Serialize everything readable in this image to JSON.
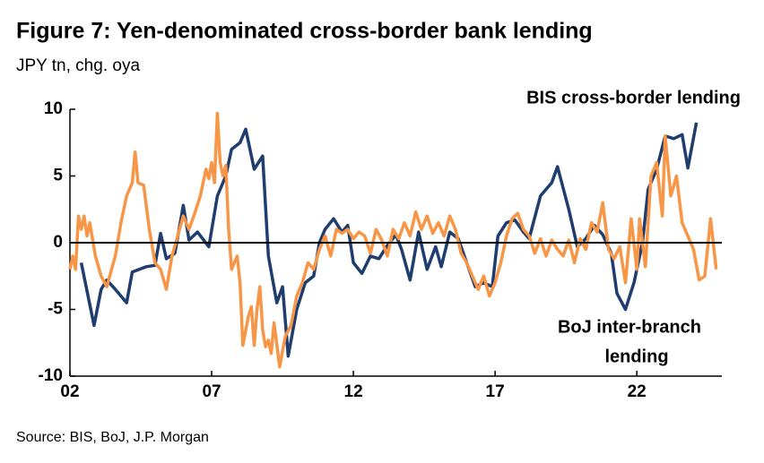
{
  "chart_data": {
    "type": "line",
    "title": "Figure 7: Yen-denominated cross-border bank lending",
    "subtitle": "JPY tn, chg. oya",
    "source": "Source: BIS, BoJ, J.P. Morgan",
    "annotations": [
      {
        "text": [
          "BIS cross-border lending"
        ],
        "series": 0
      },
      {
        "text": [
          "BoJ inter-branch",
          "lending"
        ],
        "series": 1
      }
    ],
    "xlim": [
      2002,
      2025
    ],
    "xticks": [
      {
        "value": 2002,
        "label": "02"
      },
      {
        "value": 2007,
        "label": "07"
      },
      {
        "value": 2012,
        "label": "12"
      },
      {
        "value": 2017,
        "label": "17"
      },
      {
        "value": 2022,
        "label": "22"
      }
    ],
    "ylim": [
      -10,
      10
    ],
    "yticks": [
      10,
      5,
      0,
      -5,
      -10
    ],
    "series": [
      {
        "name": "BIS cross-border lending",
        "color": "#1f3d6e",
        "x": [
          2002.4,
          2002.85,
          2003.1,
          2003.3,
          2003.6,
          2004.0,
          2004.2,
          2004.7,
          2005.0,
          2005.2,
          2005.4,
          2005.7,
          2006.0,
          2006.2,
          2006.5,
          2006.9,
          2007.2,
          2007.5,
          2007.7,
          2008.0,
          2008.2,
          2008.5,
          2008.8,
          2009.0,
          2009.3,
          2009.5,
          2009.7,
          2010.0,
          2010.3,
          2010.6,
          2010.8,
          2011.0,
          2011.3,
          2011.6,
          2011.8,
          2012.0,
          2012.3,
          2012.6,
          2012.9,
          2013.2,
          2013.5,
          2013.7,
          2014.0,
          2014.3,
          2014.6,
          2014.9,
          2015.1,
          2015.4,
          2015.7,
          2016.0,
          2016.3,
          2016.6,
          2016.9,
          2017.1,
          2017.4,
          2017.7,
          2018.0,
          2018.2,
          2018.6,
          2019.0,
          2019.2,
          2019.6,
          2019.9,
          2020.2,
          2020.5,
          2020.8,
          2021.1,
          2021.3,
          2021.6,
          2021.9,
          2022.2,
          2022.4,
          2022.7,
          2023.0,
          2023.3,
          2023.6,
          2023.8,
          2024.1
        ],
        "values": [
          -1.5,
          -6.2,
          -3.5,
          -2.8,
          -3.5,
          -4.5,
          -2.2,
          -1.8,
          -1.7,
          0.7,
          -1.2,
          -0.8,
          2.8,
          0.2,
          0.8,
          -0.3,
          3.5,
          5.0,
          7.0,
          7.5,
          8.5,
          5.5,
          6.5,
          -1.0,
          -4.5,
          -3.3,
          -8.5,
          -5.0,
          -3.0,
          -2.5,
          0,
          1.0,
          1.8,
          0.8,
          1.3,
          -1.5,
          -2.3,
          -1.0,
          -1.2,
          -0.2,
          0.6,
          -0.5,
          -2.8,
          0.8,
          -2.0,
          -0.3,
          -1.8,
          0.8,
          0.3,
          -1.5,
          -3.3,
          -3.0,
          -3.3,
          0.5,
          1.5,
          1.7,
          0.8,
          0.3,
          3.5,
          4.5,
          5.7,
          2.5,
          -0.3,
          0.3,
          1.3,
          0.6,
          -0.8,
          -3.8,
          -5.0,
          -3.0,
          0,
          4.0,
          5.5,
          8.0,
          7.8,
          8.1,
          5.6,
          9.0
        ]
      },
      {
        "name": "BoJ inter-branch lending",
        "color": "#f79646",
        "x": [
          2002.0,
          2002.1,
          2002.2,
          2002.3,
          2002.4,
          2002.5,
          2002.6,
          2002.7,
          2002.9,
          2003.1,
          2003.3,
          2003.4,
          2003.6,
          2003.8,
          2004.0,
          2004.2,
          2004.3,
          2004.4,
          2004.6,
          2004.8,
          2005.0,
          2005.2,
          2005.4,
          2005.6,
          2005.8,
          2006.0,
          2006.2,
          2006.4,
          2006.6,
          2006.8,
          2006.9,
          2007.0,
          2007.1,
          2007.2,
          2007.3,
          2007.4,
          2007.5,
          2007.6,
          2007.7,
          2007.9,
          2008.0,
          2008.1,
          2008.3,
          2008.4,
          2008.5,
          2008.6,
          2008.7,
          2008.8,
          2008.9,
          2009.0,
          2009.1,
          2009.2,
          2009.4,
          2009.6,
          2009.8,
          2010.0,
          2010.2,
          2010.4,
          2010.6,
          2010.8,
          2011.0,
          2011.2,
          2011.4,
          2011.6,
          2011.8,
          2012.0,
          2012.2,
          2012.4,
          2012.6,
          2012.8,
          2013.0,
          2013.2,
          2013.4,
          2013.6,
          2013.8,
          2014.0,
          2014.2,
          2014.4,
          2014.6,
          2014.8,
          2015.0,
          2015.2,
          2015.4,
          2015.6,
          2015.8,
          2016.0,
          2016.2,
          2016.4,
          2016.6,
          2016.8,
          2017.0,
          2017.2,
          2017.4,
          2017.6,
          2017.8,
          2018.0,
          2018.2,
          2018.4,
          2018.6,
          2018.8,
          2019.0,
          2019.2,
          2019.4,
          2019.6,
          2019.8,
          2020.0,
          2020.2,
          2020.4,
          2020.6,
          2020.8,
          2021.0,
          2021.2,
          2021.4,
          2021.6,
          2021.8,
          2022.0,
          2022.1,
          2022.3,
          2022.5,
          2022.7,
          2022.9,
          2023.0,
          2023.2,
          2023.4,
          2023.6,
          2023.8,
          2024.0,
          2024.2,
          2024.4,
          2024.6,
          2024.8
        ],
        "values": [
          -2.0,
          -1.0,
          -2.0,
          2.0,
          1.0,
          2.0,
          0.5,
          1.5,
          -1.0,
          -2.5,
          -3.3,
          -2.5,
          -1.0,
          1.5,
          3.5,
          4.5,
          6.8,
          4.5,
          4.3,
          1.0,
          -1.5,
          -2.0,
          -3.5,
          -1.0,
          0.5,
          2.0,
          1.0,
          2.2,
          3.5,
          5.5,
          4.8,
          6.0,
          4.5,
          9.7,
          6.0,
          5.0,
          5.8,
          1.0,
          -2.0,
          -1.0,
          -3.0,
          -7.7,
          -5.5,
          -4.8,
          -7.7,
          -5.0,
          -3.3,
          -6.5,
          -7.8,
          -7.3,
          -8.3,
          -6.0,
          -9.3,
          -7.0,
          -6.2,
          -4.0,
          -3.0,
          -1.5,
          -2.0,
          -0.5,
          0.5,
          -1.0,
          1.0,
          0.7,
          1.0,
          0.3,
          0.8,
          0.5,
          -0.8,
          1.0,
          0.2,
          -1.0,
          1.0,
          0.3,
          1.5,
          0.5,
          2.3,
          1.0,
          2.0,
          0.7,
          1.5,
          0.5,
          2.0,
          1.0,
          -0.8,
          -1.5,
          -2.5,
          -3.5,
          -2.5,
          -4.0,
          -3.0,
          -1.5,
          0.5,
          1.8,
          2.2,
          1.0,
          0.5,
          -0.8,
          0.3,
          -1.0,
          0.2,
          -0.5,
          -1.0,
          0.2,
          -1.5,
          0.3,
          -0.5,
          1.5,
          0.8,
          3.0,
          -0.5,
          -1.2,
          -0.3,
          -3.0,
          1.8,
          -2.0,
          1.8,
          -1.8,
          5.0,
          6.0,
          2.0,
          8.0,
          3.5,
          5.0,
          1.5,
          0.5,
          -0.5,
          -2.8,
          -2.5,
          1.8,
          -2.0
        ]
      }
    ]
  }
}
